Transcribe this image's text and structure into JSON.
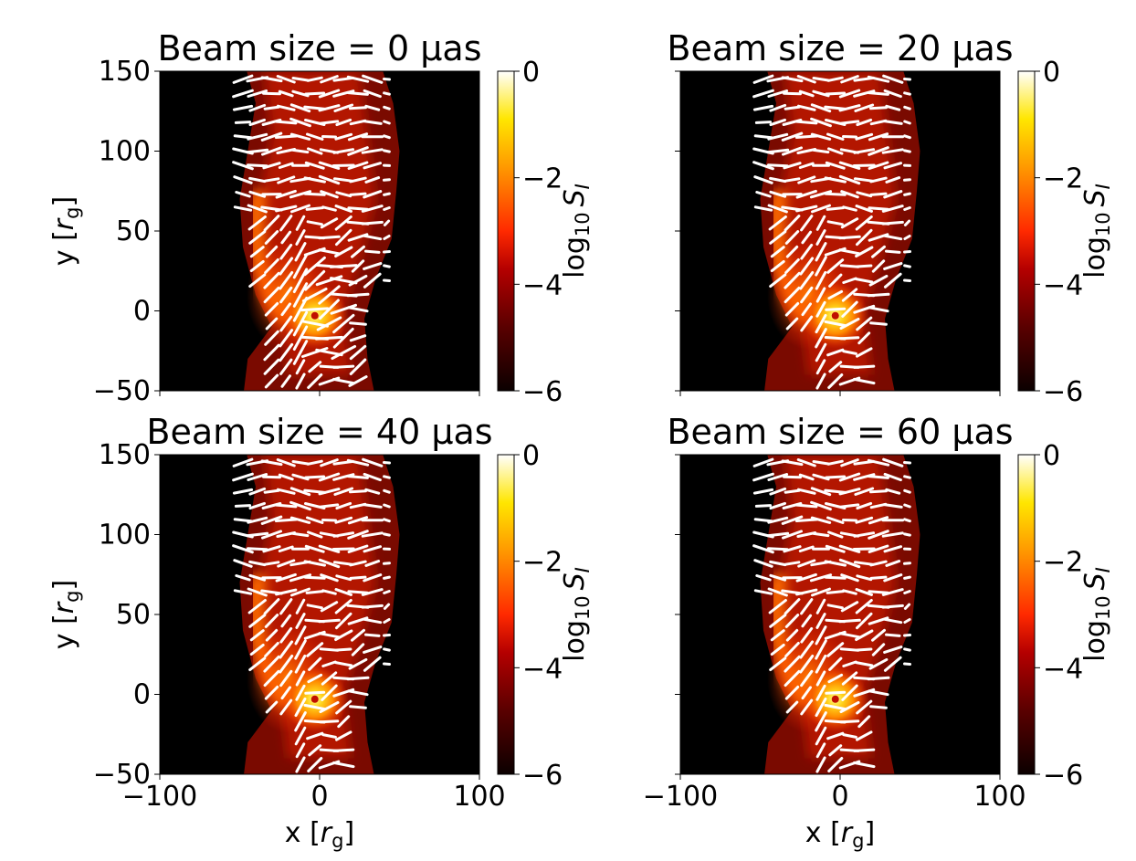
{
  "chart_data": {
    "type": "heatmap",
    "colormap": "hot",
    "colorbar_label": "log₁₀ S_I",
    "colorbar_label_main": "log",
    "colorbar_label_sub": "10",
    "colorbar_label_var": "S",
    "colorbar_label_var_sub": "I",
    "colorbar_range": [
      -6,
      0
    ],
    "colorbar_ticks": [
      "−6",
      "−4",
      "−2",
      "0"
    ],
    "x_range": [
      -100,
      100
    ],
    "y_range": [
      -50,
      150
    ],
    "x_ticks": [
      "−100",
      "0",
      "100"
    ],
    "y_ticks": [
      "−50",
      "0",
      "50",
      "100",
      "150"
    ],
    "x_label_prefix": "x [",
    "y_label_prefix": "y [",
    "axis_unit_main": "r",
    "axis_unit_sub": "g",
    "axis_label_suffix": "]",
    "black_hole_position": [
      -3,
      -3
    ],
    "panels": [
      {
        "title": "Beam size = 0 μas",
        "beam_uas": 0
      },
      {
        "title": "Beam size = 20 μas",
        "beam_uas": 20
      },
      {
        "title": "Beam size = 40 μas",
        "beam_uas": 40
      },
      {
        "title": "Beam size = 60 μas",
        "beam_uas": 60
      }
    ]
  }
}
